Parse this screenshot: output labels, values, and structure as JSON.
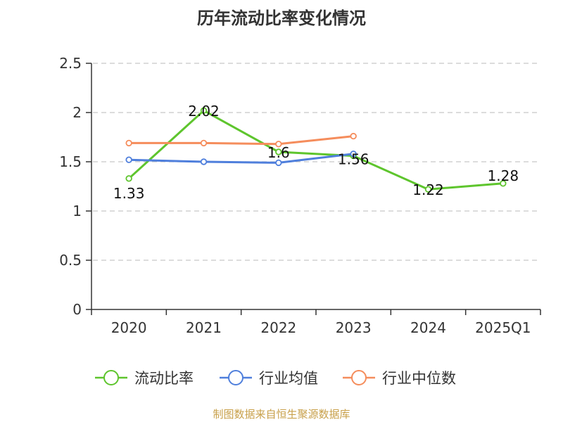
{
  "chart_data": {
    "type": "line",
    "title": "历年流动比率变化情况",
    "categories": [
      "2020",
      "2021",
      "2022",
      "2023",
      "2024",
      "2025Q1"
    ],
    "ylim": [
      0,
      2.5
    ],
    "yticks": [
      "0",
      "0.5",
      "1",
      "1.5",
      "2",
      "2.5"
    ],
    "grid": true,
    "legend_position": "bottom",
    "series": [
      {
        "name": "流动比率",
        "color": "#5ec52d",
        "values": [
          1.33,
          2.02,
          1.6,
          1.56,
          1.22,
          1.28
        ],
        "labels": [
          "1.33",
          "2.02",
          "1.6",
          "1.56",
          "1.22",
          "1.28"
        ]
      },
      {
        "name": "行业均值",
        "color": "#4f7fdc",
        "values": [
          1.52,
          1.5,
          1.49,
          1.58,
          null,
          null
        ]
      },
      {
        "name": "行业中位数",
        "color": "#f58d5c",
        "values": [
          1.69,
          1.69,
          1.68,
          1.76,
          null,
          null
        ]
      }
    ]
  },
  "footer": {
    "source": "制图数据来自恒生聚源数据库"
  }
}
